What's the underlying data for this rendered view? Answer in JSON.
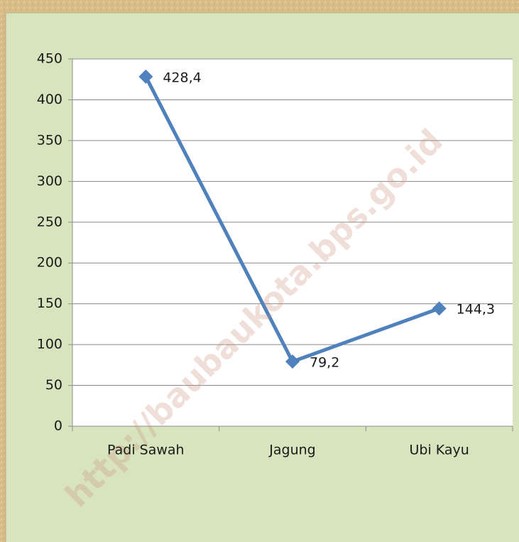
{
  "chart_data": {
    "type": "line",
    "categories": [
      "Padi Sawah",
      "Jagung",
      "Ubi Kayu"
    ],
    "values": [
      428.4,
      79.2,
      144.3
    ],
    "value_labels": [
      "428,4",
      "79,2",
      "144,3"
    ],
    "color": "#4f81bd",
    "ylim": [
      0,
      450
    ],
    "yticks": [
      0,
      50,
      100,
      150,
      200,
      250,
      300,
      350,
      400,
      450
    ],
    "grid": true,
    "watermark": "http://baubaukota.bps.go.id"
  }
}
